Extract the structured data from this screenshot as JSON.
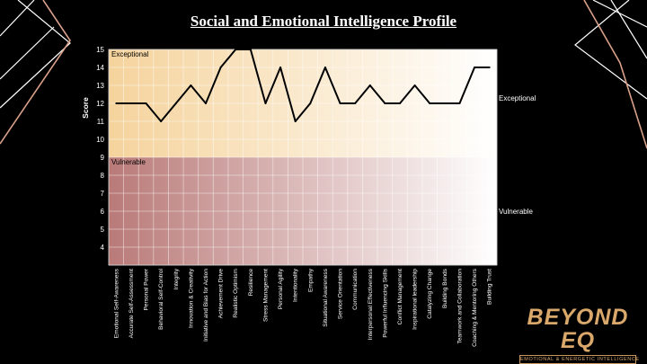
{
  "title": "Social and Emotional Intelligence Profile",
  "chart_data": {
    "type": "line",
    "title": "Social and Emotional Intelligence Profile",
    "xlabel": "",
    "ylabel": "Score",
    "ylim": [
      3,
      15
    ],
    "yticks": [
      4,
      5,
      6,
      7,
      8,
      9,
      10,
      11,
      12,
      13,
      14,
      15
    ],
    "grid": true,
    "bands": [
      {
        "label": "Exceptional",
        "from": 9,
        "to": 15,
        "color": "#f5d39c"
      },
      {
        "label": "Vulnerable",
        "from": 3,
        "to": 9,
        "color": "#b97a78"
      }
    ],
    "band_labels_inside": [
      "Exceptional",
      "Vulnerable"
    ],
    "band_labels_right": [
      "Exceptional",
      "Vulnerable"
    ],
    "categories": [
      "Emotional Self-Awareness",
      "Accurate Self-Assessment",
      "Personal Power",
      "Behavioral Self-Control",
      "Integrity",
      "Innovation & Creativity",
      "Initiative and Bias for Action",
      "Achievement Drive",
      "Realistic Optimism",
      "Resilience",
      "Stress Management",
      "Personal Agility",
      "Intentionality",
      "Empathy",
      "Situational Awareness",
      "Service Orientation",
      "Communication",
      "Interpersonal Effectiveness",
      "Powerful Influencing Skills",
      "Conflict Management",
      "Inspirational leadership",
      "Catalyzing Change",
      "Building Bonds",
      "Teamwork and Collaboration",
      "Coaching & Mentoring Others",
      "Building Trust"
    ],
    "series": [
      {
        "values": [
          12,
          12,
          12,
          11,
          12,
          13,
          12,
          14,
          15,
          15,
          12,
          14,
          11,
          12,
          14,
          12,
          12,
          13,
          12,
          12,
          13,
          12,
          12,
          12,
          14,
          14
        ],
        "color": "#000000"
      }
    ]
  },
  "logo": {
    "main": "BEYOND EQ",
    "sub": "EMOTIONAL & ENERGETIC INTELLIGENCE"
  }
}
